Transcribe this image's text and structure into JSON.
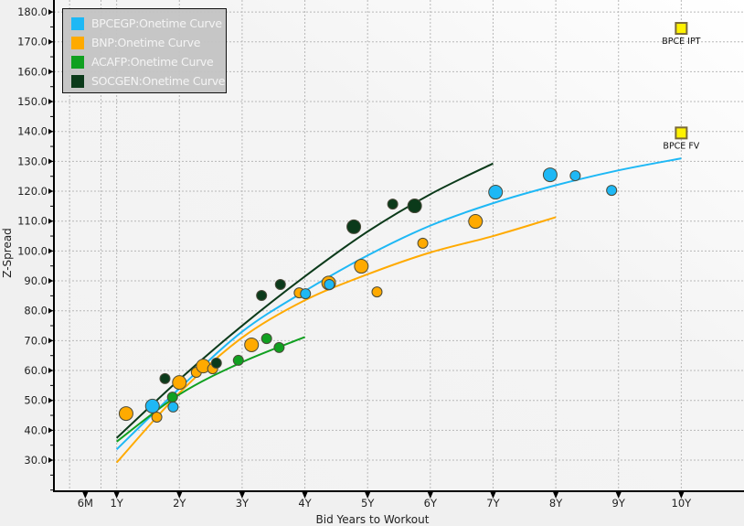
{
  "chart_data": {
    "type": "scatter",
    "title": "",
    "xlabel": "Bid Years to Workout",
    "ylabel": "Z-Spread",
    "xlim": [
      0,
      11
    ],
    "ylim": [
      19.6,
      184
    ],
    "x_ticks": [
      {
        "value": 0.5,
        "label": "6M"
      },
      {
        "value": 1,
        "label": "1Y"
      },
      {
        "value": 2,
        "label": "2Y"
      },
      {
        "value": 3,
        "label": "3Y"
      },
      {
        "value": 4,
        "label": "4Y"
      },
      {
        "value": 5,
        "label": "5Y"
      },
      {
        "value": 6,
        "label": "6Y"
      },
      {
        "value": 7,
        "label": "7Y"
      },
      {
        "value": 8,
        "label": "8Y"
      },
      {
        "value": 9,
        "label": "9Y"
      },
      {
        "value": 10,
        "label": "10Y"
      }
    ],
    "y_ticks": [
      {
        "value": 30,
        "label": "30.0"
      },
      {
        "value": 40,
        "label": "40.0"
      },
      {
        "value": 50,
        "label": "50.0"
      },
      {
        "value": 60,
        "label": "60.0"
      },
      {
        "value": 70,
        "label": "70.0"
      },
      {
        "value": 80,
        "label": "80.0"
      },
      {
        "value": 90,
        "label": "90.0"
      },
      {
        "value": 100,
        "label": "100.0"
      },
      {
        "value": 110,
        "label": "110.0"
      },
      {
        "value": 120,
        "label": "120.0"
      },
      {
        "value": 130,
        "label": "130.0"
      },
      {
        "value": 140,
        "label": "140.0"
      },
      {
        "value": 150,
        "label": "150.0"
      },
      {
        "value": 160,
        "label": "160.0"
      },
      {
        "value": 170,
        "label": "170.0"
      },
      {
        "value": 180,
        "label": "180.0"
      }
    ],
    "grid": true,
    "legend_position": "top-left",
    "series": [
      {
        "name": "BPCEGP:Onetime Curve",
        "color": "#1EB8F5",
        "curve": [
          [
            1,
            33.6
          ],
          [
            2,
            54
          ],
          [
            3,
            73
          ],
          [
            4,
            86.6
          ],
          [
            5,
            98.5
          ],
          [
            6,
            108.5
          ],
          [
            7,
            116
          ],
          [
            8,
            122
          ],
          [
            9,
            127
          ],
          [
            10,
            131
          ]
        ],
        "points": [
          [
            1.57,
            48.1,
            "L"
          ],
          [
            1.9,
            47.8,
            "S"
          ],
          [
            4.01,
            85.7,
            "S"
          ],
          [
            4.39,
            88.8,
            "S"
          ],
          [
            7.04,
            119.7,
            "L"
          ],
          [
            7.91,
            125.5,
            "L"
          ],
          [
            8.31,
            125.2,
            "S"
          ],
          [
            8.89,
            120.3,
            "S"
          ]
        ]
      },
      {
        "name": "BNP:Onetime Curve",
        "color": "#FFAA00",
        "curve": [
          [
            1,
            29.2
          ],
          [
            2,
            52.5
          ],
          [
            3,
            71
          ],
          [
            4,
            83.5
          ],
          [
            5,
            92.2
          ],
          [
            6,
            99.5
          ],
          [
            7,
            105
          ],
          [
            8,
            111.3
          ]
        ],
        "points": [
          [
            1.15,
            45.6,
            "L"
          ],
          [
            1.64,
            44.4,
            "S"
          ],
          [
            2.0,
            56.0,
            "L"
          ],
          [
            2.27,
            59.4,
            "S"
          ],
          [
            2.38,
            61.5,
            "L"
          ],
          [
            2.53,
            60.6,
            "S"
          ],
          [
            3.15,
            68.6,
            "L"
          ],
          [
            3.91,
            86.0,
            "S"
          ],
          [
            4.38,
            89.3,
            "L"
          ],
          [
            4.9,
            94.9,
            "L"
          ],
          [
            5.15,
            86.3,
            "S"
          ],
          [
            5.88,
            102.6,
            "S"
          ],
          [
            6.72,
            109.9,
            "L"
          ]
        ]
      },
      {
        "name": "ACAFP:Onetime Curve",
        "color": "#10A020",
        "curve": [
          [
            1,
            36.2
          ],
          [
            2,
            52
          ],
          [
            3,
            62.8
          ],
          [
            4,
            71.2
          ]
        ],
        "points": [
          [
            1.89,
            51.1,
            "S"
          ],
          [
            2.94,
            63.4,
            "S"
          ],
          [
            3.39,
            70.7,
            "S"
          ],
          [
            3.59,
            67.7,
            "S"
          ]
        ]
      },
      {
        "name": "SOCGEN:Onetime Curve",
        "color": "#0B3A1A",
        "curve": [
          [
            1,
            37.4
          ],
          [
            2,
            57
          ],
          [
            3,
            75
          ],
          [
            4,
            91.5
          ],
          [
            5,
            106.5
          ],
          [
            6,
            119
          ],
          [
            7,
            129.3
          ]
        ],
        "points": [
          [
            1.77,
            57.3,
            "S"
          ],
          [
            2.59,
            62.5,
            "S"
          ],
          [
            3.31,
            85.1,
            "S"
          ],
          [
            3.61,
            88.8,
            "S"
          ],
          [
            4.78,
            108.1,
            "L"
          ],
          [
            5.4,
            115.7,
            "S"
          ],
          [
            5.75,
            115.1,
            "L"
          ]
        ]
      }
    ],
    "annotations": [
      {
        "label": "BPCE IPT",
        "x": 10,
        "y": 174.5,
        "color": "#FFF200"
      },
      {
        "label": "BPCE FV",
        "x": 10,
        "y": 139.5,
        "color": "#FFF200"
      }
    ]
  }
}
